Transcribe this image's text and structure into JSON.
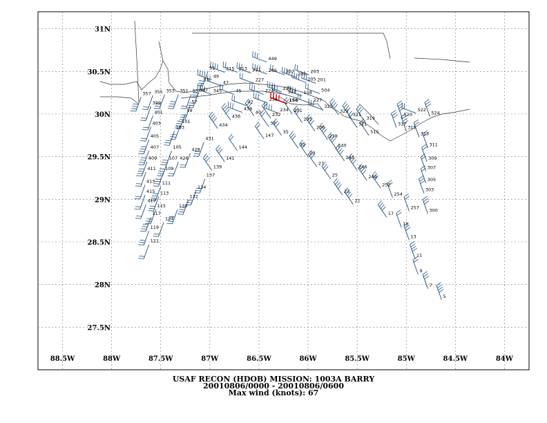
{
  "caption": {
    "line1": "USAF RECON (HDOB) MISSION:  1003A   BARRY",
    "line2": "20010806/0000 - 20010806/0600",
    "line3": "Max wind (knots):   67"
  },
  "map": {
    "lon_range": [
      -88.75,
      -83.75
    ],
    "lat_range": [
      27.0,
      31.2
    ],
    "lon_ticks": [
      {
        "value": -88.5,
        "label": "88.5W"
      },
      {
        "value": -88.0,
        "label": "88W"
      },
      {
        "value": -87.5,
        "label": "87.5W"
      },
      {
        "value": -87.0,
        "label": "87W"
      },
      {
        "value": -86.5,
        "label": "86.5W"
      },
      {
        "value": -86.0,
        "label": "86W"
      },
      {
        "value": -85.5,
        "label": "85.5W"
      },
      {
        "value": -85.0,
        "label": "85W"
      },
      {
        "value": -84.5,
        "label": "84.5W"
      },
      {
        "value": -84.0,
        "label": "84W"
      }
    ],
    "lat_ticks": [
      {
        "value": 31.0,
        "label": "31N"
      },
      {
        "value": 30.5,
        "label": "30.5N"
      },
      {
        "value": 30.0,
        "label": "30N"
      },
      {
        "value": 29.5,
        "label": "29.5N"
      },
      {
        "value": 29.0,
        "label": "29N"
      },
      {
        "value": 28.5,
        "label": "28.5N"
      },
      {
        "value": 28.0,
        "label": "28N"
      },
      {
        "value": 27.5,
        "label": "27.5N"
      }
    ],
    "grid": true,
    "colors": {
      "barb": "#1f4e79",
      "max_barb": "#e00000",
      "coast": "#333333",
      "grid": "#777777"
    },
    "max_wind_label": "156",
    "observations": [
      {
        "label": "121",
        "lon": -87.62,
        "lat": 28.47
      },
      {
        "label": "119",
        "lon": -87.62,
        "lat": 28.63
      },
      {
        "label": "117",
        "lon": -87.6,
        "lat": 28.79
      },
      {
        "label": "127",
        "lon": -87.47,
        "lat": 28.73
      },
      {
        "label": "115",
        "lon": -87.55,
        "lat": 28.88
      },
      {
        "label": "130",
        "lon": -87.33,
        "lat": 28.88
      },
      {
        "label": "417",
        "lon": -87.65,
        "lat": 28.94
      },
      {
        "label": "113",
        "lon": -87.52,
        "lat": 29.03
      },
      {
        "label": "132",
        "lon": -87.22,
        "lat": 28.99
      },
      {
        "label": "415",
        "lon": -87.66,
        "lat": 29.05
      },
      {
        "label": "134",
        "lon": -87.14,
        "lat": 29.1
      },
      {
        "label": "111",
        "lon": -87.5,
        "lat": 29.15
      },
      {
        "label": "413",
        "lon": -87.66,
        "lat": 29.17
      },
      {
        "label": "137",
        "lon": -87.05,
        "lat": 29.24
      },
      {
        "label": "109",
        "lon": -87.47,
        "lat": 29.32
      },
      {
        "label": "411",
        "lon": -87.65,
        "lat": 29.32
      },
      {
        "label": "139",
        "lon": -86.98,
        "lat": 29.34
      },
      {
        "label": "107",
        "lon": -87.43,
        "lat": 29.44
      },
      {
        "label": "426",
        "lon": -87.32,
        "lat": 29.44
      },
      {
        "label": "141",
        "lon": -86.85,
        "lat": 29.44
      },
      {
        "label": "409",
        "lon": -87.64,
        "lat": 29.44
      },
      {
        "label": "428",
        "lon": -87.2,
        "lat": 29.54
      },
      {
        "label": "105",
        "lon": -87.39,
        "lat": 29.57
      },
      {
        "label": "407",
        "lon": -87.62,
        "lat": 29.57
      },
      {
        "label": "144",
        "lon": -86.72,
        "lat": 29.57
      },
      {
        "label": "431",
        "lon": -87.06,
        "lat": 29.67
      },
      {
        "label": "405",
        "lon": -87.62,
        "lat": 29.7
      },
      {
        "label": "147",
        "lon": -86.45,
        "lat": 29.71
      },
      {
        "label": "103",
        "lon": -87.36,
        "lat": 29.8
      },
      {
        "label": "434",
        "lon": -86.92,
        "lat": 29.83
      },
      {
        "label": "403",
        "lon": -87.6,
        "lat": 29.85
      },
      {
        "label": "101",
        "lon": -87.3,
        "lat": 29.87
      },
      {
        "label": "436",
        "lon": -86.79,
        "lat": 29.93
      },
      {
        "label": "401",
        "lon": -87.58,
        "lat": 29.98
      },
      {
        "label": "438",
        "lon": -86.67,
        "lat": 30.02
      },
      {
        "label": "59",
        "lon": -87.25,
        "lat": 30.0
      },
      {
        "label": "399",
        "lon": -87.6,
        "lat": 30.09
      },
      {
        "label": "57",
        "lon": -87.2,
        "lat": 30.1
      },
      {
        "label": "357",
        "lon": -87.7,
        "lat": 30.2
      },
      {
        "label": "355",
        "lon": -87.58,
        "lat": 30.22
      },
      {
        "label": "353",
        "lon": -87.46,
        "lat": 30.23
      },
      {
        "label": "351",
        "lon": -87.32,
        "lat": 30.23
      },
      {
        "label": "55",
        "lon": -87.19,
        "lat": 30.23
      },
      {
        "label": "347",
        "lon": -87.12,
        "lat": 30.24
      },
      {
        "label": "345",
        "lon": -86.98,
        "lat": 30.23
      },
      {
        "label": "45",
        "lon": -86.75,
        "lat": 30.23
      },
      {
        "label": "224",
        "lon": -86.45,
        "lat": 30.23
      },
      {
        "label": "229",
        "lon": -86.27,
        "lat": 30.26
      },
      {
        "label": "227",
        "lon": -86.55,
        "lat": 30.36
      },
      {
        "label": "53",
        "lon": -87.08,
        "lat": 30.36
      },
      {
        "label": "49",
        "lon": -86.98,
        "lat": 30.4
      },
      {
        "label": "47",
        "lon": -86.88,
        "lat": 30.33
      },
      {
        "label": "51",
        "lon": -87.02,
        "lat": 30.5
      },
      {
        "label": "215",
        "lon": -86.85,
        "lat": 30.49
      },
      {
        "label": "213",
        "lon": -86.72,
        "lat": 30.49
      },
      {
        "label": "211",
        "lon": -86.58,
        "lat": 30.48
      },
      {
        "label": "209",
        "lon": -86.42,
        "lat": 30.47
      },
      {
        "label": "207",
        "lon": -86.24,
        "lat": 30.46
      },
      {
        "label": "449",
        "lon": -86.42,
        "lat": 30.61
      },
      {
        "label": "205",
        "lon": -86.12,
        "lat": 30.43
      },
      {
        "label": "203",
        "lon": -85.99,
        "lat": 30.46
      },
      {
        "label": "201",
        "lon": -85.92,
        "lat": 30.36
      },
      {
        "label": "205b",
        "lon": -86.02,
        "lat": 30.37
      },
      {
        "label": "504",
        "lon": -85.88,
        "lat": 30.24
      },
      {
        "label": "333",
        "lon": -86.22,
        "lat": 30.22
      },
      {
        "label": "158",
        "lon": -86.06,
        "lat": 30.21
      },
      {
        "label": "42",
        "lon": -86.63,
        "lat": 30.1
      },
      {
        "label": "236",
        "lon": -86.41,
        "lat": 30.13
      },
      {
        "label": "156",
        "lon": -86.21,
        "lat": 30.12
      },
      {
        "label": "227b",
        "lon": -85.96,
        "lat": 30.12
      },
      {
        "label": "40",
        "lon": -86.55,
        "lat": 29.98
      },
      {
        "label": "234",
        "lon": -86.3,
        "lat": 30.01
      },
      {
        "label": "231",
        "lon": -86.16,
        "lat": 30.0
      },
      {
        "label": "325",
        "lon": -85.85,
        "lat": 30.05
      },
      {
        "label": "323",
        "lon": -85.69,
        "lat": 29.99
      },
      {
        "label": "232",
        "lon": -86.38,
        "lat": 29.95
      },
      {
        "label": "233",
        "lon": -86.06,
        "lat": 29.9
      },
      {
        "label": "321",
        "lon": -85.56,
        "lat": 29.95
      },
      {
        "label": "37",
        "lon": -86.4,
        "lat": 29.85
      },
      {
        "label": "319",
        "lon": -85.42,
        "lat": 29.91
      },
      {
        "label": "520",
        "lon": -85.04,
        "lat": 29.95
      },
      {
        "label": "522",
        "lon": -84.9,
        "lat": 30.01
      },
      {
        "label": "524",
        "lon": -84.76,
        "lat": 29.97
      },
      {
        "label": "236b",
        "lon": -85.93,
        "lat": 29.8
      },
      {
        "label": "511",
        "lon": -85.5,
        "lat": 29.84
      },
      {
        "label": "317",
        "lon": -85.1,
        "lat": 29.84
      },
      {
        "label": "315",
        "lon": -85.0,
        "lat": 29.8
      },
      {
        "label": "313",
        "lon": -84.87,
        "lat": 29.73
      },
      {
        "label": "35",
        "lon": -86.27,
        "lat": 29.75
      },
      {
        "label": "238",
        "lon": -85.8,
        "lat": 29.7
      },
      {
        "label": "515",
        "lon": -85.38,
        "lat": 29.75
      },
      {
        "label": "32",
        "lon": -86.1,
        "lat": 29.6
      },
      {
        "label": "240",
        "lon": -85.71,
        "lat": 29.59
      },
      {
        "label": "311",
        "lon": -84.78,
        "lat": 29.6
      },
      {
        "label": "29",
        "lon": -86.0,
        "lat": 29.5
      },
      {
        "label": "243",
        "lon": -85.63,
        "lat": 29.45
      },
      {
        "label": "309",
        "lon": -84.79,
        "lat": 29.44
      },
      {
        "label": "27",
        "lon": -85.91,
        "lat": 29.38
      },
      {
        "label": "246",
        "lon": -85.5,
        "lat": 29.34
      },
      {
        "label": "307",
        "lon": -84.8,
        "lat": 29.33
      },
      {
        "label": "25",
        "lon": -85.77,
        "lat": 29.24
      },
      {
        "label": "249",
        "lon": -85.4,
        "lat": 29.22
      },
      {
        "label": "305",
        "lon": -84.8,
        "lat": 29.19
      },
      {
        "label": "252",
        "lon": -85.26,
        "lat": 29.13
      },
      {
        "label": "23",
        "lon": -85.65,
        "lat": 29.05
      },
      {
        "label": "254",
        "lon": -85.14,
        "lat": 29.02
      },
      {
        "label": "303",
        "lon": -84.82,
        "lat": 29.07
      },
      {
        "label": "21",
        "lon": -85.54,
        "lat": 28.94
      },
      {
        "label": "257",
        "lon": -84.97,
        "lat": 28.86
      },
      {
        "label": "300",
        "lon": -84.78,
        "lat": 28.83
      },
      {
        "label": "17",
        "lon": -85.2,
        "lat": 28.79
      },
      {
        "label": "15",
        "lon": -85.05,
        "lat": 28.67
      },
      {
        "label": "13",
        "lon": -84.97,
        "lat": 28.52
      },
      {
        "label": "11",
        "lon": -84.91,
        "lat": 28.3
      },
      {
        "label": "9",
        "lon": -84.88,
        "lat": 28.12
      },
      {
        "label": "7",
        "lon": -84.78,
        "lat": 27.95
      },
      {
        "label": "5",
        "lon": -84.64,
        "lat": 27.82
      }
    ]
  }
}
